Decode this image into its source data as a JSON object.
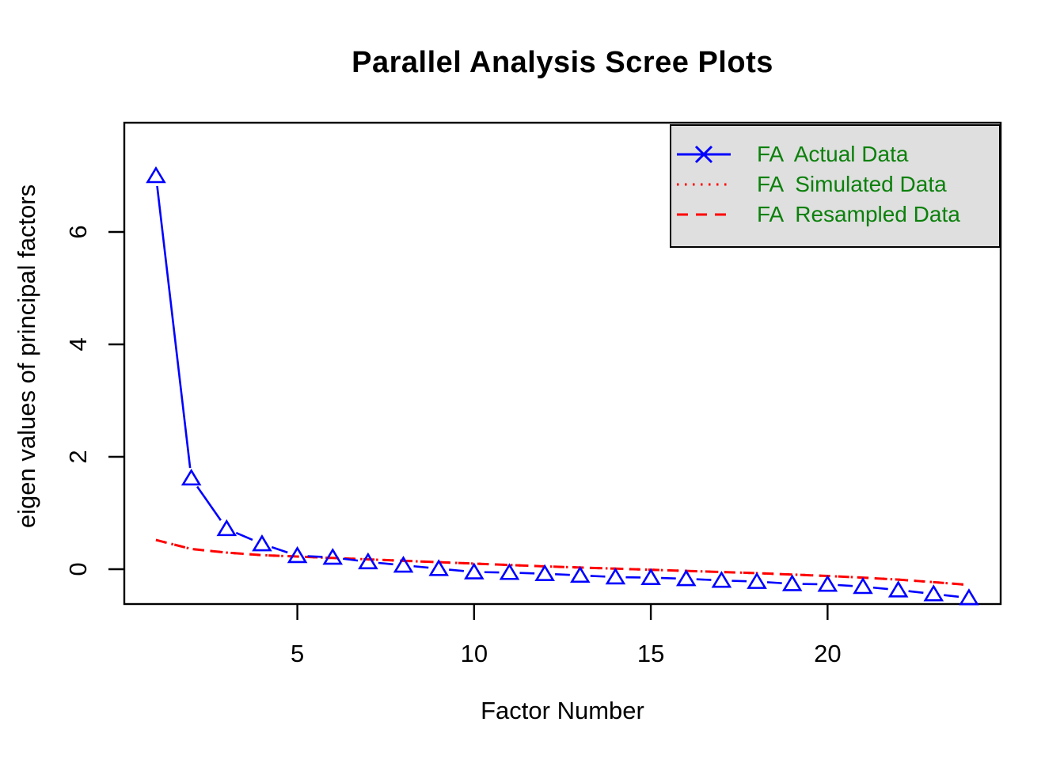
{
  "chart_data": {
    "type": "line",
    "title": "Parallel Analysis Scree Plots",
    "xlabel": "Factor Number",
    "ylabel": "eigen values of principal factors",
    "x": [
      1,
      2,
      3,
      4,
      5,
      6,
      7,
      8,
      9,
      10,
      11,
      12,
      13,
      14,
      15,
      16,
      17,
      18,
      19,
      20,
      21,
      22,
      23,
      24
    ],
    "series": [
      {
        "name": "FA  Actual Data",
        "color": "#0000FF",
        "line_style": "solid-broken-at-points",
        "marker": "open-triangle",
        "values": [
          7.0,
          1.62,
          0.72,
          0.45,
          0.24,
          0.21,
          0.13,
          0.07,
          0.01,
          -0.05,
          -0.06,
          -0.08,
          -0.11,
          -0.14,
          -0.15,
          -0.17,
          -0.2,
          -0.22,
          -0.26,
          -0.27,
          -0.31,
          -0.37,
          -0.44,
          -0.51
        ]
      },
      {
        "name": "FA  Simulated Data",
        "color": "#FF0000",
        "line_style": "dotted",
        "marker": "none",
        "values": [
          0.52,
          0.36,
          0.295,
          0.25,
          0.225,
          0.2,
          0.175,
          0.15,
          0.125,
          0.1,
          0.075,
          0.05,
          0.03,
          0.01,
          -0.01,
          -0.03,
          -0.05,
          -0.07,
          -0.095,
          -0.12,
          -0.15,
          -0.185,
          -0.23,
          -0.28
        ]
      },
      {
        "name": "FA  Resampled Data",
        "color": "#FF0000",
        "line_style": "dashed",
        "marker": "none",
        "values": [
          0.52,
          0.36,
          0.295,
          0.25,
          0.225,
          0.2,
          0.175,
          0.15,
          0.125,
          0.1,
          0.075,
          0.05,
          0.03,
          0.01,
          -0.01,
          -0.03,
          -0.05,
          -0.07,
          -0.095,
          -0.12,
          -0.15,
          -0.185,
          -0.23,
          -0.28
        ]
      }
    ],
    "x_ticks": [
      5,
      10,
      15,
      20
    ],
    "y_ticks": [
      0,
      2,
      4,
      6
    ],
    "xlim": [
      0.1,
      25.1
    ],
    "ylim": [
      -0.62,
      7.94
    ],
    "grid": false,
    "legend_position": "top-right",
    "legend_background": "#DFDFDF",
    "legend_text_color": "#0B800B",
    "axis_color": "#000000"
  }
}
